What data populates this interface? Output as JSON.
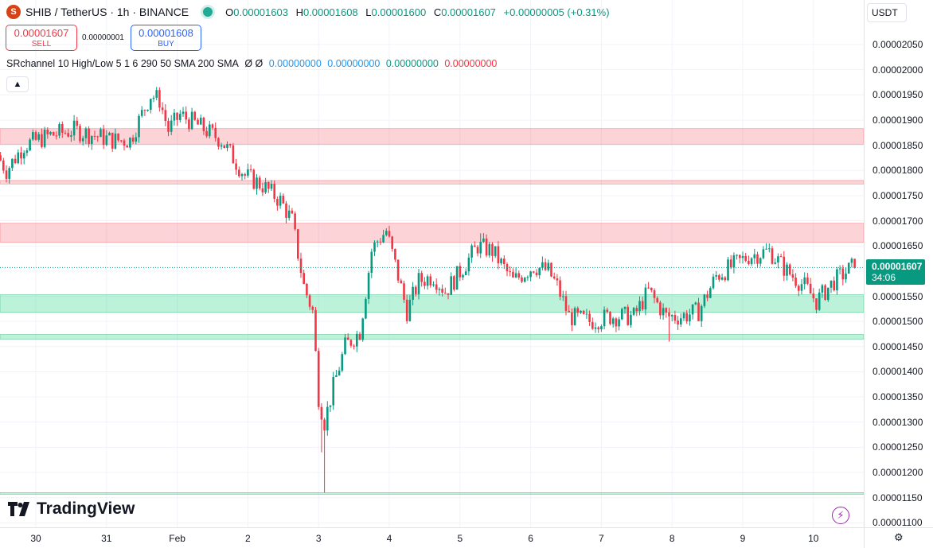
{
  "header": {
    "symbol": "SHIB / TetherUS · 1h · BINANCE",
    "icon_text": "S",
    "ohlc": [
      {
        "label": "O",
        "value": "0.00001603"
      },
      {
        "label": "H",
        "value": "0.00001608"
      },
      {
        "label": "L",
        "value": "0.00001600"
      },
      {
        "label": "C",
        "value": "0.00001607"
      }
    ],
    "change": "+0.00000005 (+0.31%)"
  },
  "trade": {
    "sell_price": "0.00001607",
    "sell_label": "SELL",
    "spread": "0.00000001",
    "buy_price": "0.00001608",
    "buy_label": "BUY"
  },
  "indicator": {
    "name": "SRchannel 10 High/Low 5 1 6 290 50 SMA 200 SMA",
    "symbols": "Ø Ø",
    "values": [
      {
        "text": "0.00000000",
        "color": "#2196f3"
      },
      {
        "text": "0.00000000",
        "color": "#2196f3"
      },
      {
        "text": "0.00000000",
        "color": "#089981"
      },
      {
        "text": "0.00000000",
        "color": "#f23645"
      }
    ]
  },
  "currency_button": "USDT",
  "current_price": {
    "price": "0.00001607",
    "countdown": "34:06",
    "value": 1.607e-05
  },
  "logo_text": "TradingView",
  "chart_data": {
    "type": "candlestick",
    "title": "SHIB / TetherUS · 1h · BINANCE",
    "ylim": [
      1.1e-05,
      2.07e-05
    ],
    "y_ticks": [
      "0.00002050",
      "0.00002000",
      "0.00001950",
      "0.00001900",
      "0.00001850",
      "0.00001800",
      "0.00001750",
      "0.00001700",
      "0.00001650",
      "0.00001600",
      "0.00001550",
      "0.00001500",
      "0.00001450",
      "0.00001400",
      "0.00001350",
      "0.00001300",
      "0.00001250",
      "0.00001200",
      "0.00001150",
      "0.00001100"
    ],
    "x_ticks": [
      "30",
      "31",
      "Feb",
      "2",
      "3",
      "4",
      "5",
      "6",
      "7",
      "8",
      "9",
      "10"
    ],
    "x_tick_hours": [
      0,
      24,
      48,
      72,
      96,
      120,
      144,
      168,
      192,
      216,
      240,
      264
    ],
    "x_range_hours": [
      -12,
      283
    ],
    "zones": [
      {
        "low": 1.852e-05,
        "high": 1.883e-05,
        "kind": "resistance"
      },
      {
        "low": 1.773e-05,
        "high": 1.78e-05,
        "kind": "resistance"
      },
      {
        "low": 1.657e-05,
        "high": 1.695e-05,
        "kind": "resistance"
      },
      {
        "low": 1.518e-05,
        "high": 1.553e-05,
        "kind": "support"
      },
      {
        "low": 1.465e-05,
        "high": 1.474e-05,
        "kind": "support"
      },
      {
        "low": 1.157e-05,
        "high": 1.16e-05,
        "kind": "support"
      }
    ],
    "waypoints": [
      [
        -12,
        1.83e-05
      ],
      [
        -9,
        1.8e-05
      ],
      [
        -3,
        1.85e-05
      ],
      [
        6,
        1.87e-05
      ],
      [
        14,
        1.88e-05
      ],
      [
        27,
        1.86e-05
      ],
      [
        33,
        1.86e-05
      ],
      [
        40,
        1.95e-05
      ],
      [
        43,
        1.94e-05
      ],
      [
        46,
        1.88e-05
      ],
      [
        50,
        1.91e-05
      ],
      [
        56,
        1.89e-05
      ],
      [
        64,
        1.86e-05
      ],
      [
        72,
        1.79e-05
      ],
      [
        78,
        1.77e-05
      ],
      [
        84,
        1.74e-05
      ],
      [
        88,
        1.7e-05
      ],
      [
        92,
        1.57e-05
      ],
      [
        95,
        1.52e-05
      ],
      [
        97,
        1.35e-05
      ],
      [
        99,
        1.3e-05
      ],
      [
        102,
        1.37e-05
      ],
      [
        106,
        1.45e-05
      ],
      [
        111,
        1.48e-05
      ],
      [
        115,
        1.64e-05
      ],
      [
        117,
        1.66e-05
      ],
      [
        120,
        1.68e-05
      ],
      [
        124,
        1.59e-05
      ],
      [
        127,
        1.52e-05
      ],
      [
        131,
        1.58e-05
      ],
      [
        136,
        1.59e-05
      ],
      [
        140,
        1.56e-05
      ],
      [
        144,
        1.59e-05
      ],
      [
        151,
        1.65e-05
      ],
      [
        156,
        1.64e-05
      ],
      [
        163,
        1.58e-05
      ],
      [
        170,
        1.61e-05
      ],
      [
        175,
        1.6e-05
      ],
      [
        178,
        1.57e-05
      ],
      [
        182,
        1.51e-05
      ],
      [
        189,
        1.5e-05
      ],
      [
        196,
        1.51e-05
      ],
      [
        204,
        1.51e-05
      ],
      [
        209,
        1.56e-05
      ],
      [
        215,
        1.51e-05
      ],
      [
        220,
        1.51e-05
      ],
      [
        226,
        1.52e-05
      ],
      [
        232,
        1.59e-05
      ],
      [
        243,
        1.63e-05
      ],
      [
        250,
        1.64e-05
      ],
      [
        256,
        1.6e-05
      ],
      [
        262,
        1.57e-05
      ],
      [
        266,
        1.54e-05
      ],
      [
        272,
        1.58e-05
      ],
      [
        278,
        1.607e-05
      ]
    ],
    "spikes": [
      {
        "hour": 98,
        "low": 1.16e-05
      },
      {
        "hour": 97,
        "low": 1.24e-05
      },
      {
        "hour": 120,
        "high": 1.69e-05
      },
      {
        "hour": 151,
        "high": 1.675e-05
      },
      {
        "hour": 215,
        "low": 1.46e-05
      },
      {
        "hour": 250,
        "high": 1.65e-05
      },
      {
        "hour": 42,
        "high": 1.965e-05
      }
    ],
    "colors": {
      "up": "#089981",
      "down": "#f23645",
      "support_zone": "rgba(34,212,128,0.30)",
      "resistance_zone": "rgba(242,54,69,0.22)"
    },
    "grid": true
  }
}
